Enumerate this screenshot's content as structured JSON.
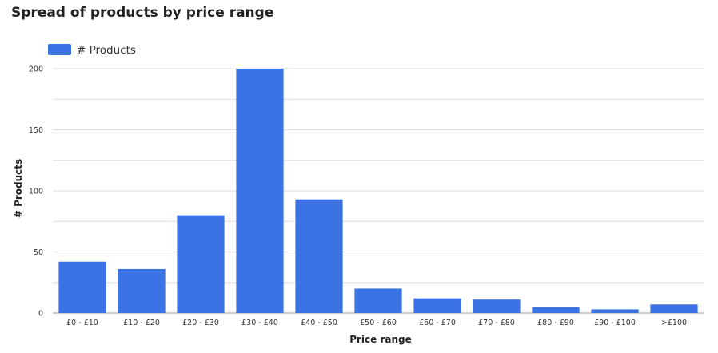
{
  "chart_data": {
    "type": "bar",
    "title": "Spread of products by price range",
    "xlabel": "Price range",
    "ylabel": "# Products",
    "categories": [
      "£0 - £10",
      "£10 - £20",
      "£20 - £30",
      "£30 - £40",
      "£40 - £50",
      "£50 - £60",
      "£60 - £70",
      "£70 - £80",
      "£80 - £90",
      "£90 - £100",
      ">£100"
    ],
    "series": [
      {
        "name": "# Products",
        "color": "#3b73e4",
        "values": [
          42,
          36,
          80,
          201,
          93,
          20,
          12,
          11,
          5,
          3,
          7
        ]
      }
    ],
    "ylim": [
      0,
      200
    ],
    "yticks": [
      "0",
      "50",
      "100",
      "150",
      "200"
    ],
    "grid": true,
    "legend": "top-left"
  }
}
